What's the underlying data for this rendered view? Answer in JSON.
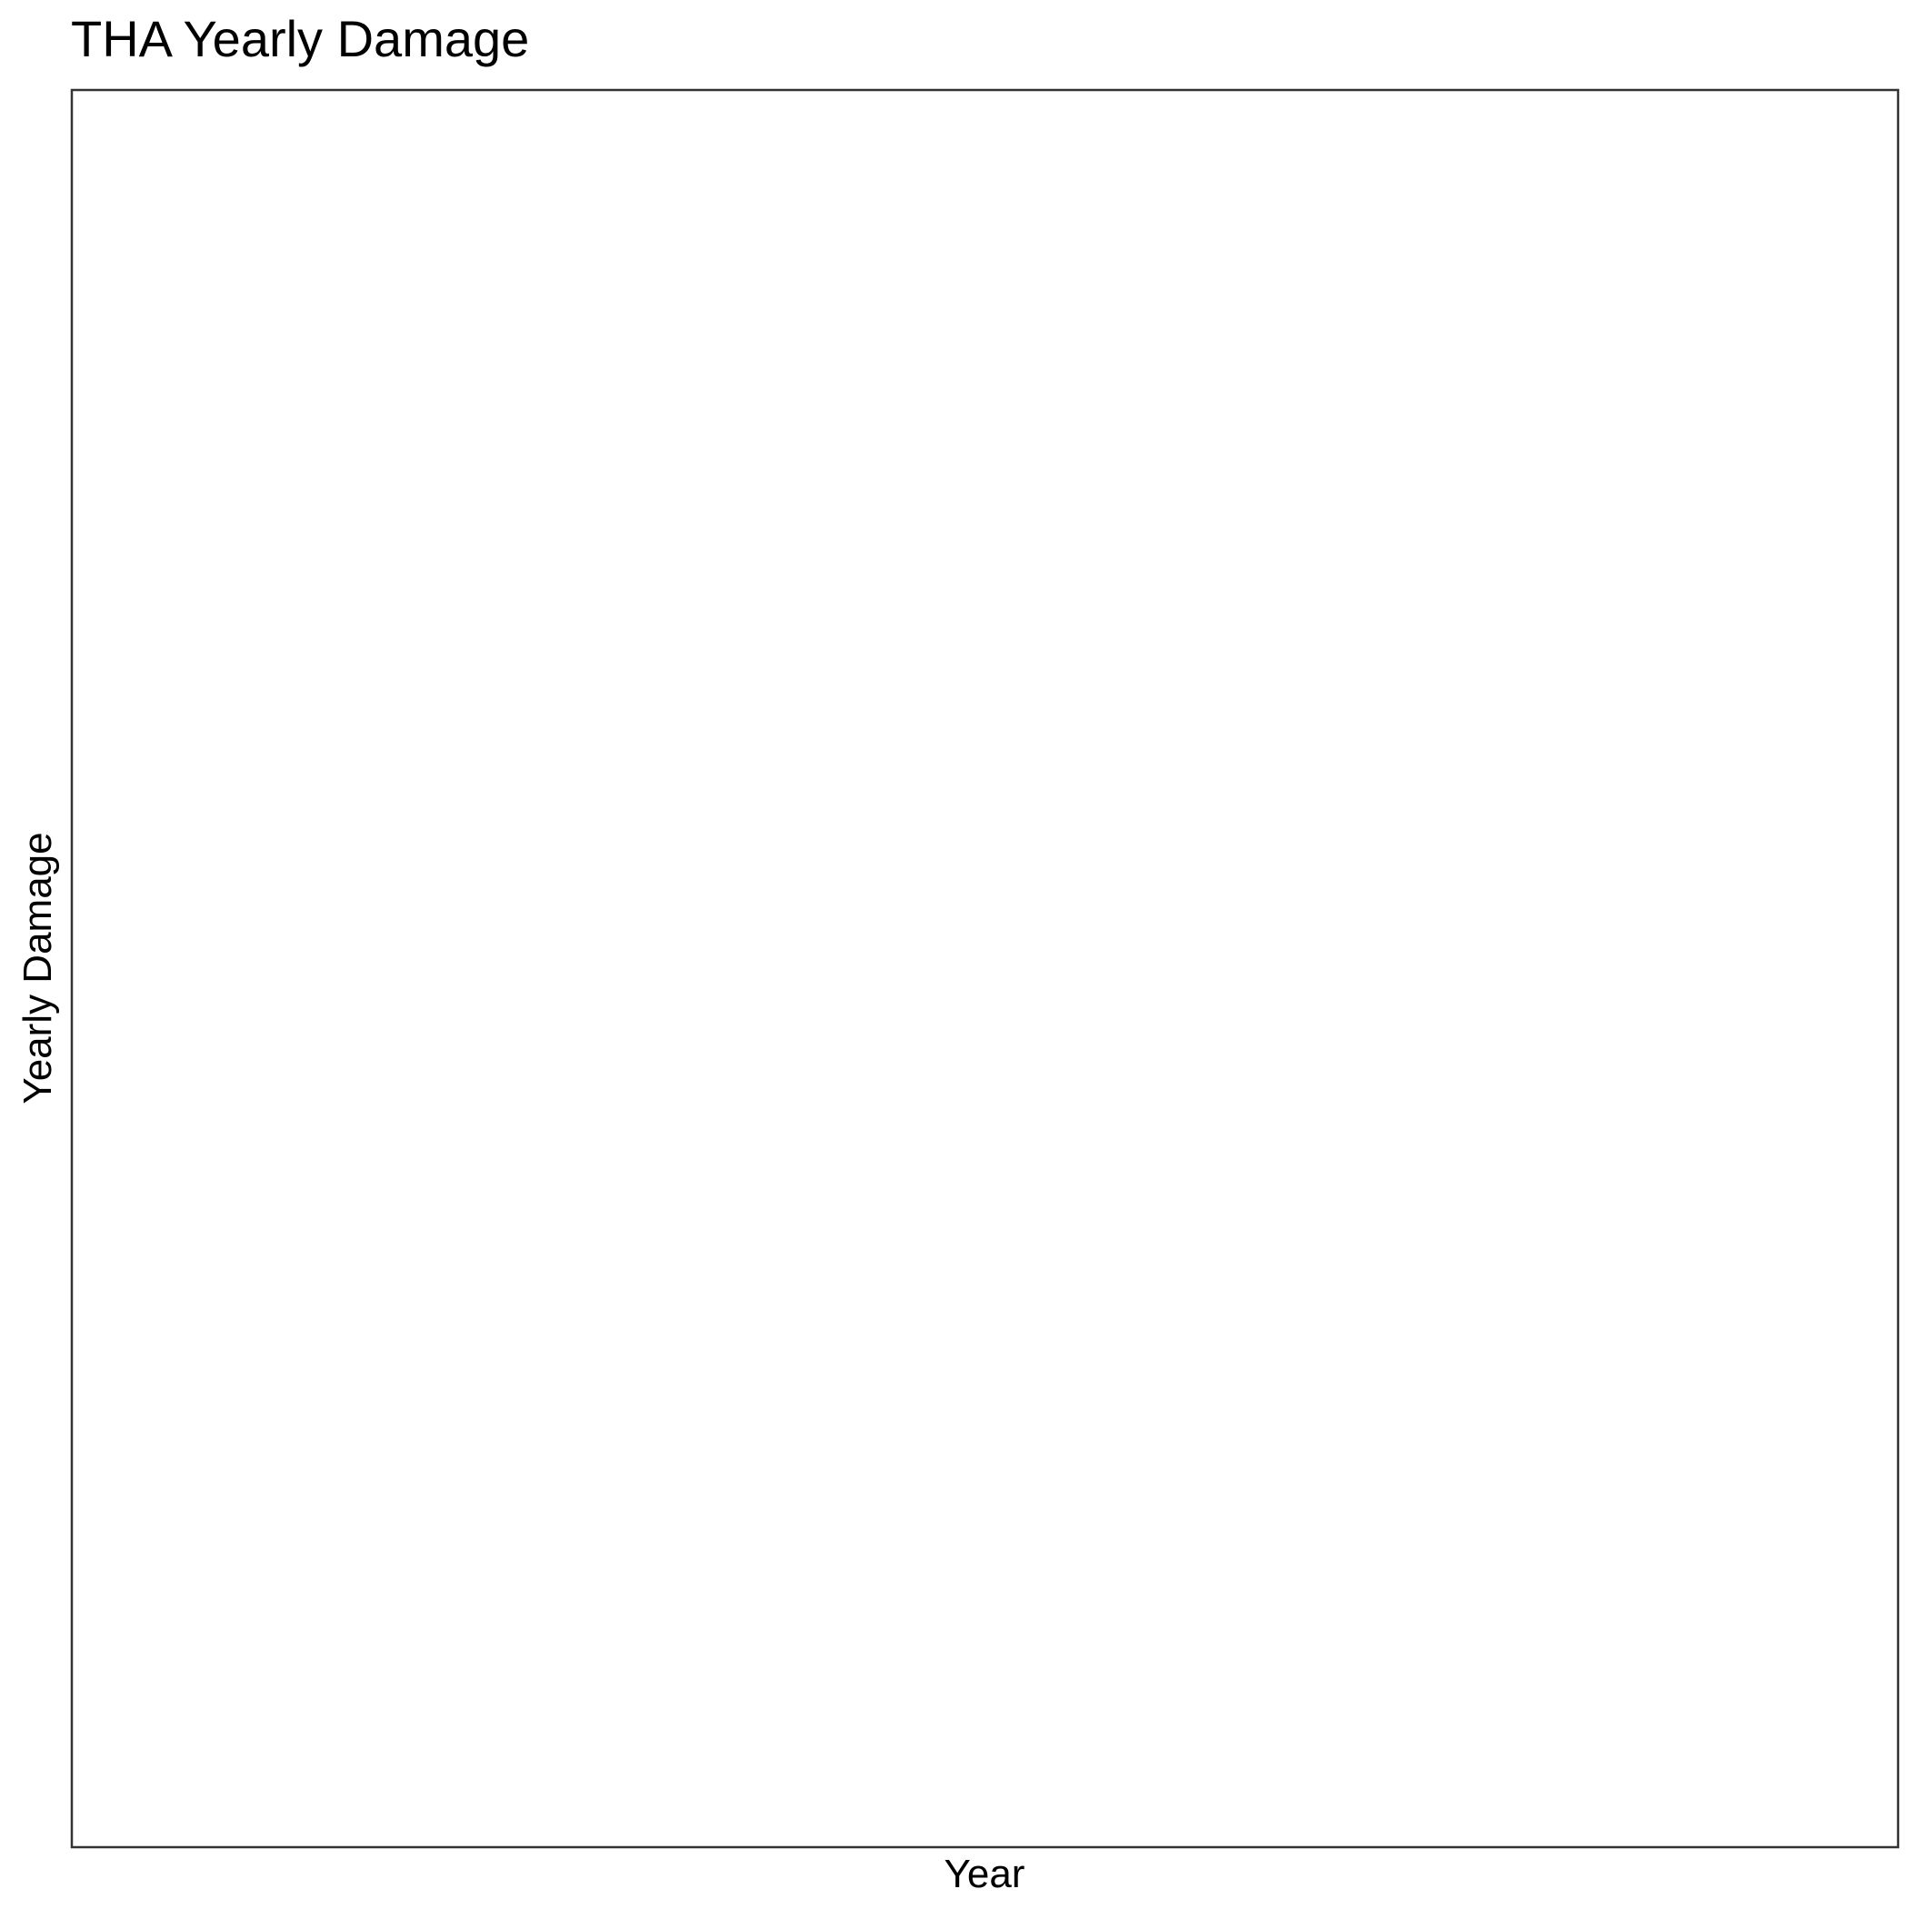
{
  "chart_data": {
    "type": "line",
    "title": "THA Yearly Damage",
    "xlabel": "Year",
    "ylabel": "Yearly Damage",
    "x": [],
    "series": [],
    "grid": false,
    "legend": "none"
  },
  "colors": {
    "background": "#ffffff",
    "panel_border": "#333333",
    "text": "#000000"
  }
}
